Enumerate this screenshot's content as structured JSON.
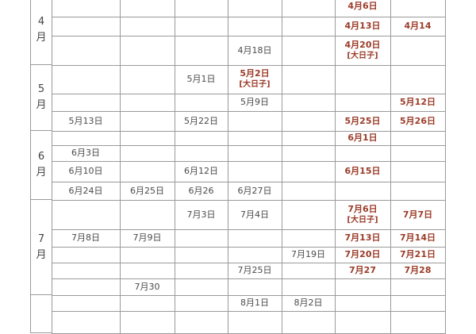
{
  "colors": {
    "normal_text": "#4a4a4a",
    "highlight_text": "#9b3b28",
    "grid": "#9a9a9a"
  },
  "big_day_label": "[大日子]",
  "months": [
    {
      "label": "4\n月",
      "rows": [
        0,
        2
      ]
    },
    {
      "label": "5\n月",
      "rows": [
        3,
        5
      ]
    },
    {
      "label": "6\n月",
      "rows": [
        6,
        9
      ]
    },
    {
      "label": "7\n月",
      "rows": [
        10,
        14
      ]
    },
    {
      "label": "",
      "rows": [
        15,
        16
      ]
    }
  ],
  "rows": [
    {
      "cells": [
        null,
        null,
        null,
        null,
        null,
        {
          "text": "4月6日",
          "red": true
        },
        null
      ]
    },
    {
      "cells": [
        null,
        null,
        null,
        null,
        null,
        {
          "text": "4月13日",
          "red": true
        },
        {
          "text": "4月14",
          "red": true
        }
      ]
    },
    {
      "cells": [
        null,
        null,
        null,
        {
          "text": "4月18日"
        },
        null,
        {
          "text": "4月20日",
          "red": true,
          "tag": true
        },
        null
      ]
    },
    {
      "cells": [
        null,
        null,
        {
          "text": "5月1日"
        },
        {
          "text": "5月2日",
          "red": true,
          "tag": true
        },
        null,
        null,
        null
      ]
    },
    {
      "cells": [
        null,
        null,
        null,
        {
          "text": "5月9日"
        },
        null,
        null,
        {
          "text": "5月12日",
          "red": true
        }
      ]
    },
    {
      "cells": [
        {
          "text": "5月13日"
        },
        null,
        {
          "text": "5月22日"
        },
        null,
        null,
        {
          "text": "5月25日",
          "red": true
        },
        {
          "text": "5月26日",
          "red": true
        }
      ]
    },
    {
      "cells": [
        null,
        null,
        null,
        null,
        null,
        {
          "text": "6月1日",
          "red": true
        },
        null
      ]
    },
    {
      "cells": [
        {
          "text": "6月3日"
        },
        null,
        null,
        null,
        null,
        null,
        null
      ]
    },
    {
      "cells": [
        {
          "text": "6月10日"
        },
        null,
        {
          "text": "6月12日"
        },
        null,
        null,
        {
          "text": "6月15日",
          "red": true
        },
        null
      ]
    },
    {
      "cells": [
        {
          "text": "6月24日"
        },
        {
          "text": "6月25日"
        },
        {
          "text": "6月26"
        },
        {
          "text": "6月27日"
        },
        null,
        null,
        null
      ]
    },
    {
      "cells": [
        null,
        null,
        {
          "text": "7月3日"
        },
        {
          "text": "7月4日"
        },
        null,
        {
          "text": "7月6日",
          "red": true,
          "tag": true
        },
        {
          "text": "7月7日",
          "red": true
        }
      ]
    },
    {
      "cells": [
        {
          "text": "7月8日"
        },
        {
          "text": "7月9日"
        },
        null,
        null,
        null,
        {
          "text": "7月13日",
          "red": true
        },
        {
          "text": "7月14日",
          "red": true
        }
      ]
    },
    {
      "cells": [
        null,
        null,
        null,
        null,
        {
          "text": "7月19日"
        },
        {
          "text": "7月20日",
          "red": true
        },
        {
          "text": "7月21日",
          "red": true
        }
      ]
    },
    {
      "cells": [
        null,
        null,
        null,
        {
          "text": "7月25日"
        },
        null,
        {
          "text": "7月27",
          "red": true
        },
        {
          "text": "7月28",
          "red": true
        }
      ]
    },
    {
      "cells": [
        null,
        {
          "text": "7月30"
        },
        null,
        null,
        null,
        null,
        null
      ]
    },
    {
      "cells": [
        null,
        null,
        null,
        {
          "text": "8月1日"
        },
        {
          "text": "8月2日"
        },
        null,
        null
      ]
    },
    {
      "cells": [
        null,
        null,
        null,
        null,
        null,
        null,
        null
      ]
    }
  ]
}
